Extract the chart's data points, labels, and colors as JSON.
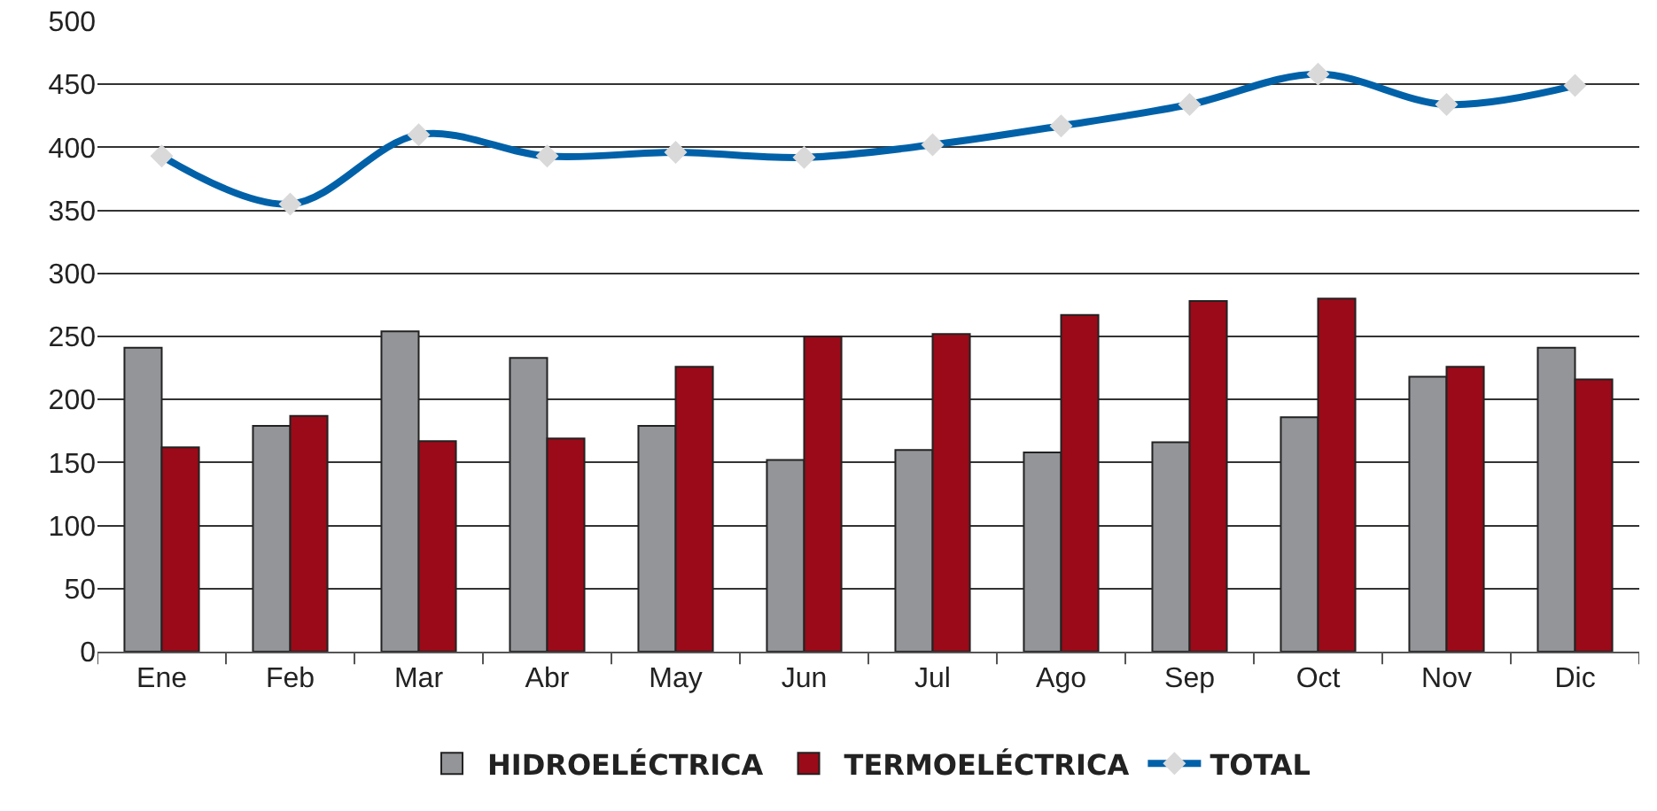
{
  "chart_data": {
    "type": "bar",
    "categories": [
      "Ene",
      "Feb",
      "Mar",
      "Abr",
      "May",
      "Jun",
      "Jul",
      "Ago",
      "Sep",
      "Oct",
      "Nov",
      "Dic"
    ],
    "series": [
      {
        "name": "HIDROELÉCTRICA",
        "color": "#939598",
        "values": [
          241,
          179,
          254,
          233,
          179,
          152,
          160,
          158,
          166,
          186,
          218,
          241
        ]
      },
      {
        "name": "TERMOELÉCTRICA",
        "color": "#9b0a18",
        "values": [
          162,
          187,
          167,
          169,
          226,
          250,
          252,
          267,
          278,
          280,
          226,
          216
        ]
      },
      {
        "name": "TOTAL",
        "type": "line",
        "color": "#0061a8",
        "marker": "diamond",
        "values": [
          393,
          355,
          410,
          393,
          396,
          392,
          402,
          417,
          434,
          458,
          434,
          449
        ]
      }
    ],
    "ylim": [
      0,
      500
    ],
    "yticks": [
      0,
      50,
      100,
      150,
      200,
      250,
      300,
      350,
      400,
      450,
      500
    ],
    "grid": "y",
    "legend": "bottom"
  }
}
